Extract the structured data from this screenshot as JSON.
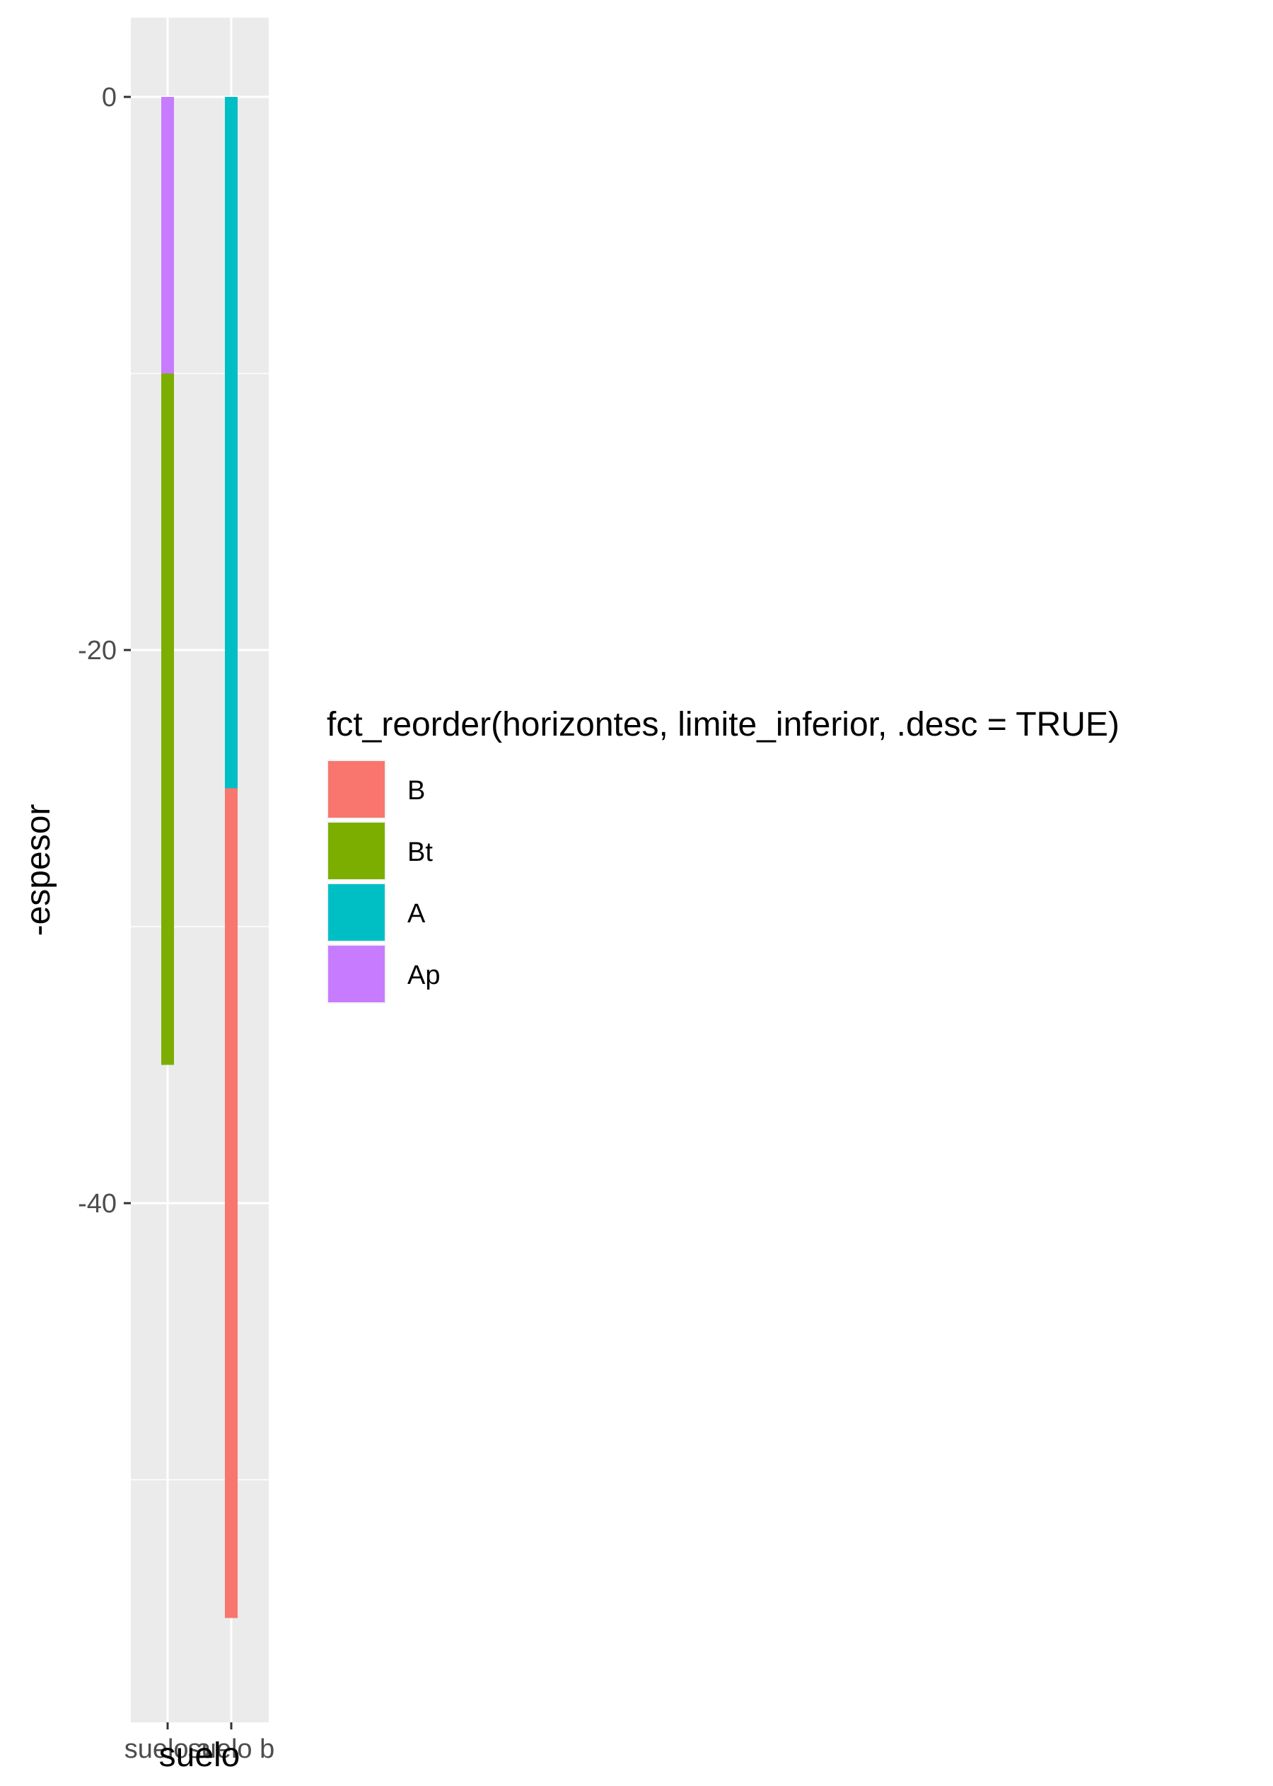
{
  "chart_data": {
    "type": "bar",
    "subtype": "stacked-segments (vertical, from 0 downward)",
    "xlabel": "suelo",
    "ylabel": "-espesor",
    "categories": [
      "suelo a",
      "suelo b"
    ],
    "y_ticks": [
      0,
      -20,
      -40
    ],
    "y_tick_labels": [
      "0",
      "-20",
      "-40"
    ],
    "ylim": [
      -55,
      3
    ],
    "grid": true,
    "legend": {
      "title": "fct_reorder(horizontes, limite_inferior, .desc = TRUE)",
      "position": "right",
      "items": [
        {
          "label": "B",
          "color": "#F8766D"
        },
        {
          "label": "Bt",
          "color": "#7CAE00"
        },
        {
          "label": "A",
          "color": "#00BFC4"
        },
        {
          "label": "Ap",
          "color": "#C77CFF"
        }
      ]
    },
    "segments": [
      {
        "category": "suelo a",
        "horizon": "Ap",
        "top": 0,
        "bottom": -10,
        "color": "#C77CFF"
      },
      {
        "category": "suelo a",
        "horizon": "Bt",
        "top": -10,
        "bottom": -35,
        "color": "#7CAE00"
      },
      {
        "category": "suelo b",
        "horizon": "A",
        "top": 0,
        "bottom": -25,
        "color": "#00BFC4"
      },
      {
        "category": "suelo b",
        "horizon": "B",
        "top": -25,
        "bottom": -55,
        "color": "#F8766D"
      }
    ],
    "colors": {
      "panel_background": "#EBEBEB",
      "grid_major": "#FFFFFF",
      "axis_text": "#4D4D4D",
      "axis_title": "#000000"
    }
  }
}
